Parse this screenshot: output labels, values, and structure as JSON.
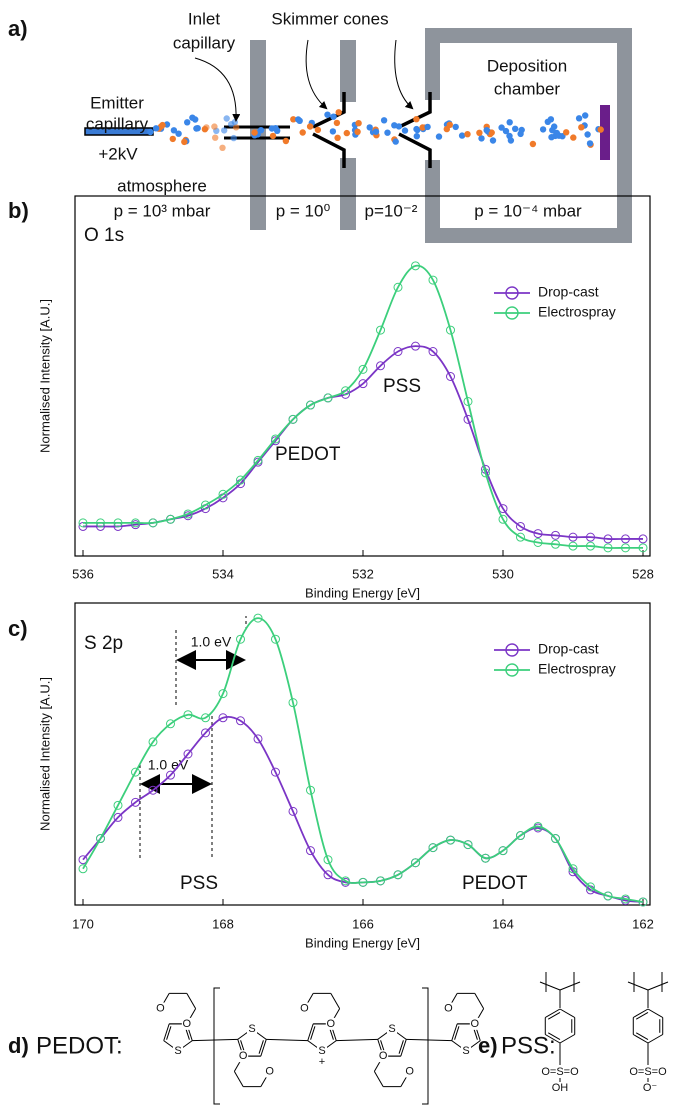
{
  "panel_labels": [
    "a)",
    "b)",
    "c)",
    "d)",
    "e)"
  ],
  "diagram": {
    "emitter_label": [
      "Emitter",
      "capillary"
    ],
    "inlet_label": [
      "Inlet",
      "capillary"
    ],
    "skimmer_label": "Skimmer cones",
    "deposition_label": [
      "Deposition",
      "chamber"
    ],
    "voltage": "+2kV",
    "atmosphere": "atmosphere",
    "pressures": [
      "p = 10³ mbar",
      "p = 10⁰",
      "p=10⁻²",
      "p = 10⁻⁴ mbar"
    ]
  },
  "chart_data": [
    {
      "type": "line",
      "x_label": "Binding Energy [eV]",
      "y_label": "Normalised Intensity [A.U.]",
      "annotations": [
        "O 1s",
        "PSS",
        "PEDOT"
      ],
      "x": [
        536,
        535.75,
        535.5,
        535.25,
        535,
        534.75,
        534.5,
        534.25,
        534,
        533.75,
        533.5,
        533.25,
        533,
        532.75,
        532.5,
        532.25,
        532,
        531.75,
        531.5,
        531.25,
        531,
        530.75,
        530.5,
        530.25,
        530,
        529.75,
        529.5,
        529.25,
        529,
        528.75,
        528.5,
        528.25,
        528
      ],
      "xlim": [
        536,
        528
      ],
      "xticks": [
        536,
        534,
        532,
        530,
        528
      ],
      "ylim": [
        0,
        1
      ],
      "legend": "upper right",
      "series": [
        {
          "name": "Drop-cast",
          "color": "#7b35c6",
          "values": [
            0.08,
            0.08,
            0.08,
            0.085,
            0.09,
            0.1,
            0.11,
            0.13,
            0.16,
            0.2,
            0.26,
            0.32,
            0.38,
            0.42,
            0.44,
            0.45,
            0.48,
            0.53,
            0.57,
            0.585,
            0.57,
            0.5,
            0.38,
            0.24,
            0.13,
            0.08,
            0.06,
            0.055,
            0.05,
            0.05,
            0.045,
            0.045,
            0.045
          ]
        },
        {
          "name": "Electrospray",
          "color": "#3ccf7c",
          "values": [
            0.09,
            0.09,
            0.09,
            0.09,
            0.09,
            0.1,
            0.115,
            0.14,
            0.17,
            0.21,
            0.265,
            0.325,
            0.38,
            0.42,
            0.44,
            0.46,
            0.52,
            0.63,
            0.75,
            0.81,
            0.77,
            0.63,
            0.43,
            0.23,
            0.1,
            0.05,
            0.035,
            0.03,
            0.025,
            0.025,
            0.02,
            0.02,
            0.02
          ]
        }
      ]
    },
    {
      "type": "line",
      "x_label": "Binding Energy [eV]",
      "y_label": "Normalised Intensity [A.U.]",
      "annotations": [
        "S 2p",
        "PSS",
        "PEDOT",
        "1.0 eV",
        "1.0 eV"
      ],
      "x": [
        170,
        169.75,
        169.5,
        169.25,
        169,
        168.75,
        168.5,
        168.25,
        168,
        167.75,
        167.5,
        167.25,
        167,
        166.75,
        166.5,
        166.25,
        166,
        165.75,
        165.5,
        165.25,
        165,
        164.75,
        164.5,
        164.25,
        164,
        163.75,
        163.5,
        163.25,
        163,
        162.75,
        162.5,
        162.25,
        162
      ],
      "xlim": [
        170,
        162
      ],
      "xticks": [
        170,
        168,
        166,
        164,
        162
      ],
      "ylim": [
        0,
        1
      ],
      "legend": "upper right",
      "series": [
        {
          "name": "Drop-cast",
          "color": "#7b35c6",
          "values": [
            0.15,
            0.22,
            0.29,
            0.34,
            0.38,
            0.43,
            0.5,
            0.57,
            0.62,
            0.61,
            0.55,
            0.44,
            0.31,
            0.18,
            0.1,
            0.075,
            0.075,
            0.08,
            0.1,
            0.14,
            0.19,
            0.215,
            0.2,
            0.155,
            0.18,
            0.23,
            0.255,
            0.22,
            0.11,
            0.05,
            0.03,
            0.015,
            0.01
          ]
        },
        {
          "name": "Electrospray",
          "color": "#3ccf7c",
          "values": [
            0.12,
            0.22,
            0.33,
            0.44,
            0.54,
            0.6,
            0.63,
            0.62,
            0.7,
            0.88,
            0.95,
            0.88,
            0.67,
            0.38,
            0.15,
            0.08,
            0.075,
            0.08,
            0.1,
            0.14,
            0.19,
            0.215,
            0.2,
            0.155,
            0.18,
            0.23,
            0.26,
            0.22,
            0.12,
            0.06,
            0.03,
            0.02,
            0.01
          ]
        }
      ]
    }
  ],
  "structures": {
    "pedot_label": "PEDOT:",
    "pss_label": "PSS:",
    "atoms": {
      "S": "S",
      "O": "O",
      "plus": "+",
      "sulfonyl": "O=S=O",
      "OH": "OH",
      "O_minus": "O⁻"
    }
  }
}
